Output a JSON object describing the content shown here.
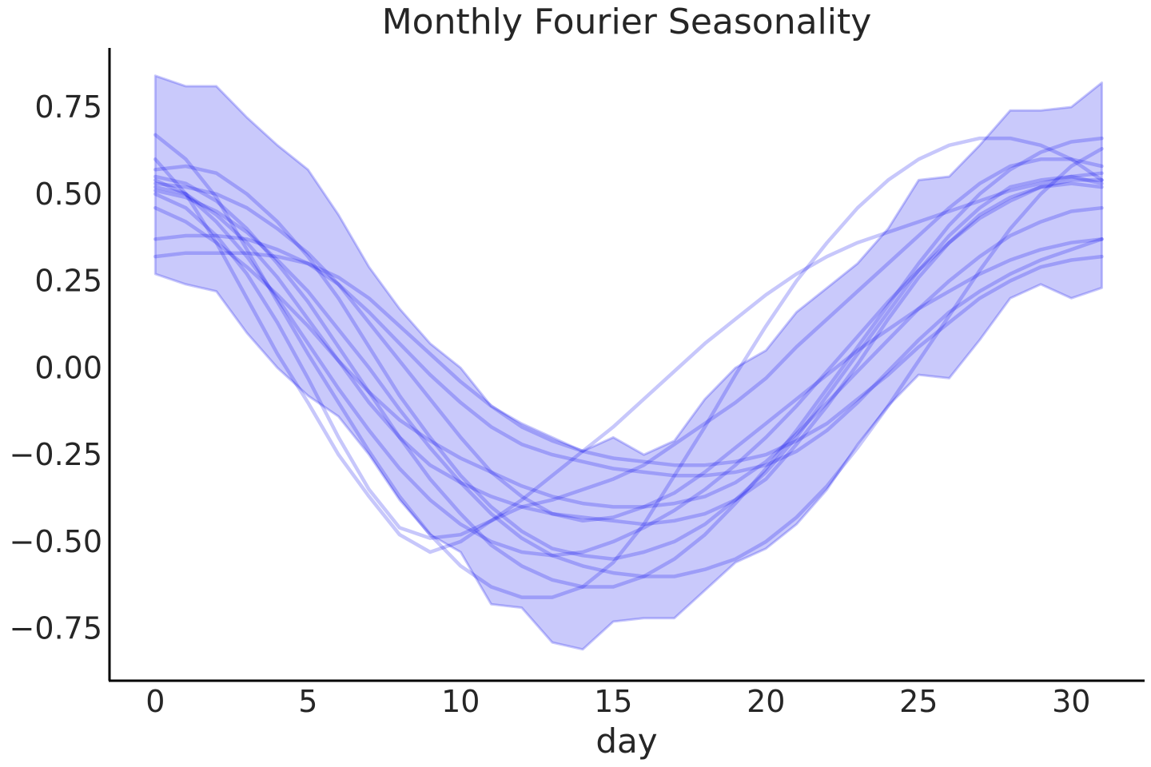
{
  "chart_data": {
    "type": "line",
    "title": "Monthly Fourier Seasonality",
    "xlabel": "day",
    "ylabel": "",
    "xlim": [
      -1.5,
      32.4
    ],
    "ylim": [
      -0.9,
      0.92
    ],
    "xticks": [
      0,
      5,
      10,
      15,
      20,
      25,
      30
    ],
    "yticks": [
      -0.75,
      -0.5,
      -0.25,
      0.0,
      0.25,
      0.5,
      0.75
    ],
    "ytick_labels": [
      "−0.75",
      "−0.50",
      "−0.25",
      "0.00",
      "0.25",
      "0.50",
      "0.75"
    ],
    "grid": false,
    "legend": "none",
    "x": [
      0,
      1,
      2,
      3,
      4,
      5,
      6,
      7,
      8,
      9,
      10,
      11,
      12,
      13,
      14,
      15,
      16,
      17,
      18,
      19,
      20,
      21,
      22,
      23,
      24,
      25,
      26,
      27,
      28,
      29,
      30,
      31
    ],
    "band": {
      "upper": [
        0.84,
        0.81,
        0.81,
        0.72,
        0.64,
        0.57,
        0.44,
        0.29,
        0.17,
        0.07,
        0.0,
        -0.11,
        -0.16,
        -0.2,
        -0.24,
        -0.2,
        -0.25,
        -0.21,
        -0.09,
        0.0,
        0.05,
        0.16,
        0.23,
        0.3,
        0.4,
        0.54,
        0.55,
        0.64,
        0.74,
        0.74,
        0.75,
        0.82
      ],
      "lower": [
        0.27,
        0.24,
        0.22,
        0.1,
        0.0,
        -0.08,
        -0.14,
        -0.25,
        -0.38,
        -0.48,
        -0.53,
        -0.68,
        -0.69,
        -0.79,
        -0.81,
        -0.73,
        -0.72,
        -0.72,
        -0.64,
        -0.56,
        -0.52,
        -0.45,
        -0.35,
        -0.22,
        -0.11,
        -0.02,
        -0.03,
        0.08,
        0.2,
        0.24,
        0.2,
        0.23
      ]
    },
    "series": [
      {
        "values": [
          0.67,
          0.6,
          0.49,
          0.34,
          0.19,
          0.04,
          -0.1,
          -0.24,
          -0.37,
          -0.48,
          -0.57,
          -0.63,
          -0.66,
          -0.66,
          -0.63,
          -0.56,
          -0.45,
          -0.31,
          -0.17,
          -0.02,
          0.12,
          0.25,
          0.36,
          0.46,
          0.54,
          0.6,
          0.64,
          0.66,
          0.66,
          0.64,
          0.6,
          0.54
        ]
      },
      {
        "values": [
          0.6,
          0.5,
          0.36,
          0.2,
          0.04,
          -0.1,
          -0.25,
          -0.37,
          -0.48,
          -0.53,
          -0.5,
          -0.44,
          -0.4,
          -0.38,
          -0.35,
          -0.32,
          -0.28,
          -0.22,
          -0.16,
          -0.1,
          -0.03,
          0.06,
          0.14,
          0.22,
          0.3,
          0.38,
          0.46,
          0.53,
          0.58,
          0.6,
          0.6,
          0.58
        ]
      },
      {
        "values": [
          0.52,
          0.5,
          0.44,
          0.36,
          0.26,
          0.14,
          0.02,
          -0.1,
          -0.2,
          -0.28,
          -0.33,
          -0.37,
          -0.4,
          -0.42,
          -0.43,
          -0.44,
          -0.45,
          -0.44,
          -0.42,
          -0.38,
          -0.32,
          -0.22,
          -0.11,
          0.01,
          0.14,
          0.26,
          0.36,
          0.44,
          0.49,
          0.52,
          0.53,
          0.52
        ]
      },
      {
        "values": [
          0.57,
          0.58,
          0.56,
          0.5,
          0.42,
          0.32,
          0.2,
          0.06,
          -0.08,
          -0.2,
          -0.31,
          -0.4,
          -0.47,
          -0.52,
          -0.54,
          -0.55,
          -0.53,
          -0.5,
          -0.45,
          -0.38,
          -0.3,
          -0.2,
          -0.08,
          0.04,
          0.16,
          0.28,
          0.38,
          0.46,
          0.52,
          0.54,
          0.55,
          0.53
        ]
      },
      {
        "values": [
          0.46,
          0.42,
          0.36,
          0.29,
          0.21,
          0.12,
          0.02,
          -0.07,
          -0.15,
          -0.21,
          -0.26,
          -0.3,
          -0.34,
          -0.37,
          -0.39,
          -0.4,
          -0.4,
          -0.39,
          -0.37,
          -0.33,
          -0.27,
          -0.19,
          -0.1,
          -0.01,
          0.08,
          0.17,
          0.25,
          0.32,
          0.38,
          0.42,
          0.45,
          0.46
        ]
      },
      {
        "values": [
          0.37,
          0.38,
          0.38,
          0.37,
          0.34,
          0.3,
          0.24,
          0.16,
          0.07,
          -0.02,
          -0.1,
          -0.17,
          -0.22,
          -0.25,
          -0.27,
          -0.29,
          -0.3,
          -0.31,
          -0.31,
          -0.3,
          -0.28,
          -0.24,
          -0.18,
          -0.1,
          -0.01,
          0.08,
          0.16,
          0.22,
          0.27,
          0.31,
          0.34,
          0.37
        ]
      },
      {
        "values": [
          0.32,
          0.33,
          0.33,
          0.33,
          0.32,
          0.3,
          0.26,
          0.2,
          0.12,
          0.04,
          -0.04,
          -0.11,
          -0.17,
          -0.21,
          -0.24,
          -0.26,
          -0.27,
          -0.28,
          -0.28,
          -0.27,
          -0.25,
          -0.21,
          -0.16,
          -0.09,
          -0.02,
          0.06,
          0.13,
          0.2,
          0.25,
          0.29,
          0.31,
          0.32
        ]
      },
      {
        "values": [
          0.53,
          0.52,
          0.5,
          0.46,
          0.4,
          0.33,
          0.24,
          0.13,
          0.02,
          -0.09,
          -0.2,
          -0.3,
          -0.37,
          -0.42,
          -0.44,
          -0.43,
          -0.4,
          -0.36,
          -0.3,
          -0.23,
          -0.16,
          -0.09,
          -0.02,
          0.05,
          0.11,
          0.17,
          0.22,
          0.27,
          0.31,
          0.34,
          0.36,
          0.37
        ]
      },
      {
        "values": [
          0.5,
          0.46,
          0.38,
          0.27,
          0.13,
          -0.03,
          -0.2,
          -0.35,
          -0.46,
          -0.49,
          -0.48,
          -0.44,
          -0.38,
          -0.31,
          -0.24,
          -0.17,
          -0.09,
          -0.01,
          0.07,
          0.14,
          0.21,
          0.27,
          0.32,
          0.36,
          0.39,
          0.42,
          0.45,
          0.48,
          0.51,
          0.53,
          0.55,
          0.56
        ]
      },
      {
        "values": [
          0.55,
          0.53,
          0.48,
          0.4,
          0.3,
          0.19,
          0.06,
          -0.07,
          -0.2,
          -0.32,
          -0.42,
          -0.51,
          -0.57,
          -0.61,
          -0.63,
          -0.63,
          -0.6,
          -0.55,
          -0.48,
          -0.39,
          -0.29,
          -0.18,
          -0.06,
          0.06,
          0.18,
          0.3,
          0.41,
          0.5,
          0.57,
          0.62,
          0.65,
          0.66
        ]
      },
      {
        "values": [
          0.51,
          0.49,
          0.45,
          0.39,
          0.31,
          0.22,
          0.11,
          0.0,
          -0.12,
          -0.23,
          -0.33,
          -0.42,
          -0.49,
          -0.54,
          -0.57,
          -0.59,
          -0.6,
          -0.6,
          -0.58,
          -0.55,
          -0.5,
          -0.43,
          -0.34,
          -0.23,
          -0.11,
          0.02,
          0.15,
          0.28,
          0.4,
          0.5,
          0.58,
          0.63
        ]
      },
      {
        "values": [
          0.54,
          0.5,
          0.42,
          0.32,
          0.2,
          0.07,
          -0.06,
          -0.18,
          -0.29,
          -0.38,
          -0.45,
          -0.5,
          -0.53,
          -0.54,
          -0.53,
          -0.5,
          -0.46,
          -0.41,
          -0.35,
          -0.28,
          -0.2,
          -0.11,
          -0.01,
          0.09,
          0.19,
          0.28,
          0.36,
          0.43,
          0.48,
          0.52,
          0.54,
          0.54
        ]
      }
    ]
  }
}
